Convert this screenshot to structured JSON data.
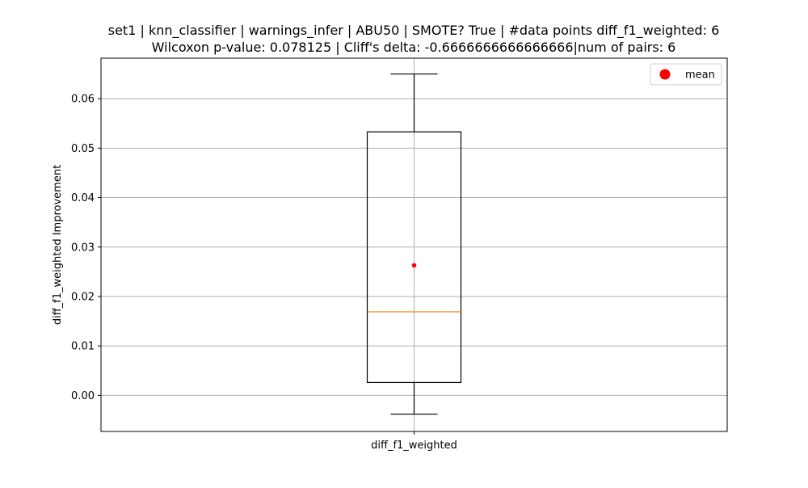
{
  "chart_data": {
    "type": "box",
    "title_line1": "set1 | knn_classifier | warnings_infer | ABU50 | SMOTE? True | #data points diff_f1_weighted: 6",
    "title_line2": "Wilcoxon p-value: 0.078125 | Cliff's delta: -0.6666666666666666|num of pairs: 6",
    "xlabel": "",
    "ylabel": "diff_f1_weighted Improvement",
    "categories": [
      "diff_f1_weighted"
    ],
    "ylim": [
      -0.0073,
      0.0682
    ],
    "yticks": [
      0.0,
      0.01,
      0.02,
      0.03,
      0.04,
      0.05,
      0.06
    ],
    "ytick_labels": [
      "0.00",
      "0.01",
      "0.02",
      "0.03",
      "0.04",
      "0.05",
      "0.06"
    ],
    "grid": true,
    "legend": {
      "placement": "top-right",
      "entries": [
        {
          "label": "mean",
          "color": "#ff0000",
          "marker": "circle"
        }
      ]
    },
    "boxes": [
      {
        "category": "diff_f1_weighted",
        "whisker_low": -0.0038,
        "q1": 0.0026,
        "median": 0.0169,
        "q3": 0.0533,
        "whisker_high": 0.065,
        "mean": 0.0263
      }
    ],
    "colors": {
      "box": "#000000",
      "median": "#ff7f0e",
      "mean": "#ff0000",
      "grid": "#b0b0b0"
    }
  }
}
